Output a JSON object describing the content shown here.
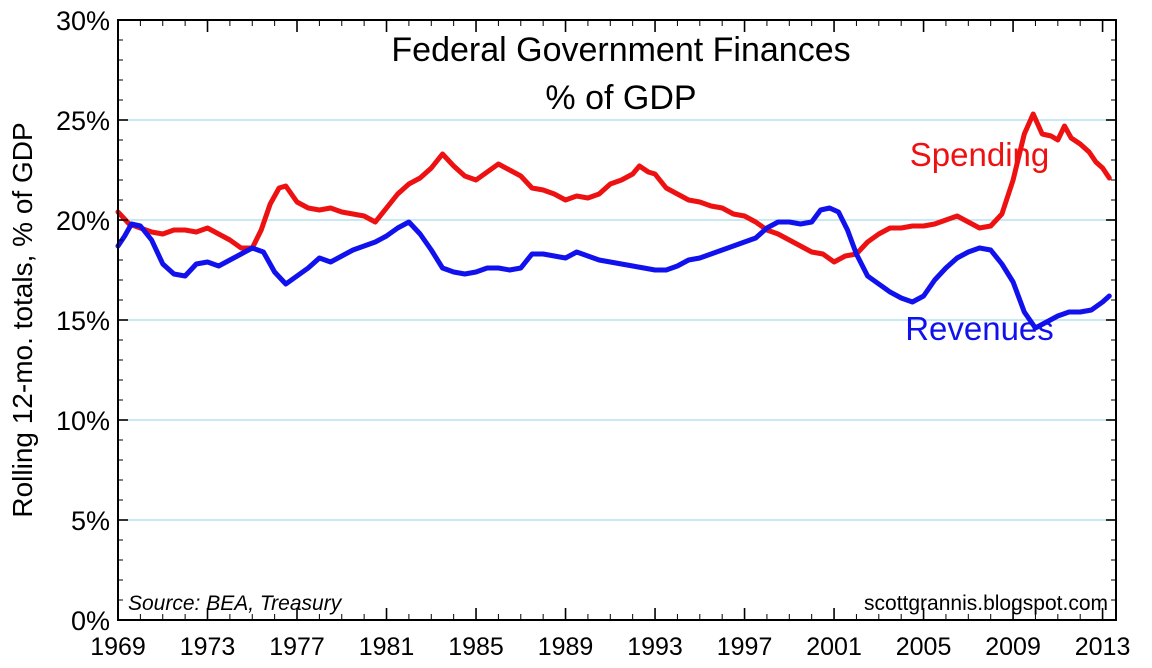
{
  "chart_data": {
    "type": "line",
    "title_line1": "Federal Government Finances",
    "title_line2": "% of GDP",
    "ylabel": "Rolling 12-mo. totals, % of GDP",
    "xlabel": "",
    "source": "Source:  BEA, Treasury",
    "credit": "scottgrannis.blogspot.com",
    "xlim": [
      1969,
      2013.6
    ],
    "ylim": [
      0,
      30
    ],
    "y_ticks": [
      {
        "value": 0,
        "label": "0%"
      },
      {
        "value": 5,
        "label": "5%"
      },
      {
        "value": 10,
        "label": "10%"
      },
      {
        "value": 15,
        "label": "15%"
      },
      {
        "value": 20,
        "label": "20%"
      },
      {
        "value": 25,
        "label": "25%"
      },
      {
        "value": 30,
        "label": "30%"
      }
    ],
    "x_ticks": [
      {
        "value": 1969,
        "label": "1969"
      },
      {
        "value": 1973,
        "label": "1973"
      },
      {
        "value": 1977,
        "label": "1977"
      },
      {
        "value": 1981,
        "label": "1981"
      },
      {
        "value": 1985,
        "label": "1985"
      },
      {
        "value": 1989,
        "label": "1989"
      },
      {
        "value": 1993,
        "label": "1993"
      },
      {
        "value": 1997,
        "label": "1997"
      },
      {
        "value": 2001,
        "label": "2001"
      },
      {
        "value": 2005,
        "label": "2005"
      },
      {
        "value": 2009,
        "label": "2009"
      },
      {
        "value": 2013,
        "label": "2013"
      }
    ],
    "grid": true,
    "series": [
      {
        "name": "Spending",
        "color": "#ee1111",
        "label_at": [
          2007.5,
          22.7
        ],
        "points": [
          [
            1969.0,
            20.4
          ],
          [
            1969.5,
            19.8
          ],
          [
            1970.0,
            19.6
          ],
          [
            1970.5,
            19.4
          ],
          [
            1971.0,
            19.3
          ],
          [
            1971.5,
            19.5
          ],
          [
            1972.0,
            19.5
          ],
          [
            1972.5,
            19.4
          ],
          [
            1973.0,
            19.6
          ],
          [
            1973.5,
            19.3
          ],
          [
            1974.0,
            19.0
          ],
          [
            1974.5,
            18.6
          ],
          [
            1975.0,
            18.6
          ],
          [
            1975.4,
            19.5
          ],
          [
            1975.8,
            20.8
          ],
          [
            1976.2,
            21.6
          ],
          [
            1976.5,
            21.7
          ],
          [
            1977.0,
            20.9
          ],
          [
            1977.5,
            20.6
          ],
          [
            1978.0,
            20.5
          ],
          [
            1978.5,
            20.6
          ],
          [
            1979.0,
            20.4
          ],
          [
            1979.5,
            20.3
          ],
          [
            1980.0,
            20.2
          ],
          [
            1980.5,
            19.9
          ],
          [
            1981.0,
            20.6
          ],
          [
            1981.5,
            21.3
          ],
          [
            1982.0,
            21.8
          ],
          [
            1982.5,
            22.1
          ],
          [
            1983.0,
            22.6
          ],
          [
            1983.5,
            23.3
          ],
          [
            1984.0,
            22.7
          ],
          [
            1984.5,
            22.2
          ],
          [
            1985.0,
            22.0
          ],
          [
            1985.5,
            22.4
          ],
          [
            1986.0,
            22.8
          ],
          [
            1986.5,
            22.5
          ],
          [
            1987.0,
            22.2
          ],
          [
            1987.5,
            21.6
          ],
          [
            1988.0,
            21.5
          ],
          [
            1988.5,
            21.3
          ],
          [
            1989.0,
            21.0
          ],
          [
            1989.5,
            21.2
          ],
          [
            1990.0,
            21.1
          ],
          [
            1990.5,
            21.3
          ],
          [
            1991.0,
            21.8
          ],
          [
            1991.5,
            22.0
          ],
          [
            1992.0,
            22.3
          ],
          [
            1992.3,
            22.7
          ],
          [
            1992.7,
            22.4
          ],
          [
            1993.0,
            22.3
          ],
          [
            1993.5,
            21.6
          ],
          [
            1994.0,
            21.3
          ],
          [
            1994.5,
            21.0
          ],
          [
            1995.0,
            20.9
          ],
          [
            1995.5,
            20.7
          ],
          [
            1996.0,
            20.6
          ],
          [
            1996.5,
            20.3
          ],
          [
            1997.0,
            20.2
          ],
          [
            1997.5,
            19.9
          ],
          [
            1998.0,
            19.5
          ],
          [
            1998.5,
            19.3
          ],
          [
            1999.0,
            19.0
          ],
          [
            1999.5,
            18.7
          ],
          [
            2000.0,
            18.4
          ],
          [
            2000.5,
            18.3
          ],
          [
            2001.0,
            17.9
          ],
          [
            2001.5,
            18.2
          ],
          [
            2002.0,
            18.3
          ],
          [
            2002.5,
            18.9
          ],
          [
            2003.0,
            19.3
          ],
          [
            2003.5,
            19.6
          ],
          [
            2004.0,
            19.6
          ],
          [
            2004.5,
            19.7
          ],
          [
            2005.0,
            19.7
          ],
          [
            2005.5,
            19.8
          ],
          [
            2006.0,
            20.0
          ],
          [
            2006.5,
            20.2
          ],
          [
            2007.0,
            19.9
          ],
          [
            2007.5,
            19.6
          ],
          [
            2008.0,
            19.7
          ],
          [
            2008.5,
            20.3
          ],
          [
            2009.0,
            22.0
          ],
          [
            2009.5,
            24.3
          ],
          [
            2009.9,
            25.3
          ],
          [
            2010.3,
            24.3
          ],
          [
            2010.7,
            24.2
          ],
          [
            2011.0,
            24.0
          ],
          [
            2011.3,
            24.7
          ],
          [
            2011.6,
            24.1
          ],
          [
            2012.0,
            23.8
          ],
          [
            2012.4,
            23.4
          ],
          [
            2012.7,
            22.9
          ],
          [
            2013.0,
            22.6
          ],
          [
            2013.3,
            22.1
          ]
        ]
      },
      {
        "name": "Revenues",
        "color": "#1111ee",
        "label_at": [
          2007.5,
          14.0
        ],
        "points": [
          [
            1969.0,
            18.7
          ],
          [
            1969.3,
            19.2
          ],
          [
            1969.6,
            19.8
          ],
          [
            1970.0,
            19.7
          ],
          [
            1970.5,
            19.0
          ],
          [
            1971.0,
            17.8
          ],
          [
            1971.5,
            17.3
          ],
          [
            1972.0,
            17.2
          ],
          [
            1972.5,
            17.8
          ],
          [
            1973.0,
            17.9
          ],
          [
            1973.5,
            17.7
          ],
          [
            1974.0,
            18.0
          ],
          [
            1974.5,
            18.3
          ],
          [
            1975.0,
            18.6
          ],
          [
            1975.5,
            18.4
          ],
          [
            1976.0,
            17.4
          ],
          [
            1976.5,
            16.8
          ],
          [
            1977.0,
            17.2
          ],
          [
            1977.5,
            17.6
          ],
          [
            1978.0,
            18.1
          ],
          [
            1978.5,
            17.9
          ],
          [
            1979.0,
            18.2
          ],
          [
            1979.5,
            18.5
          ],
          [
            1980.0,
            18.7
          ],
          [
            1980.5,
            18.9
          ],
          [
            1981.0,
            19.2
          ],
          [
            1981.5,
            19.6
          ],
          [
            1982.0,
            19.9
          ],
          [
            1982.5,
            19.3
          ],
          [
            1983.0,
            18.5
          ],
          [
            1983.5,
            17.6
          ],
          [
            1984.0,
            17.4
          ],
          [
            1984.5,
            17.3
          ],
          [
            1985.0,
            17.4
          ],
          [
            1985.5,
            17.6
          ],
          [
            1986.0,
            17.6
          ],
          [
            1986.5,
            17.5
          ],
          [
            1987.0,
            17.6
          ],
          [
            1987.5,
            18.3
          ],
          [
            1988.0,
            18.3
          ],
          [
            1988.5,
            18.2
          ],
          [
            1989.0,
            18.1
          ],
          [
            1989.5,
            18.4
          ],
          [
            1990.0,
            18.2
          ],
          [
            1990.5,
            18.0
          ],
          [
            1991.0,
            17.9
          ],
          [
            1991.5,
            17.8
          ],
          [
            1992.0,
            17.7
          ],
          [
            1992.5,
            17.6
          ],
          [
            1993.0,
            17.5
          ],
          [
            1993.5,
            17.5
          ],
          [
            1994.0,
            17.7
          ],
          [
            1994.5,
            18.0
          ],
          [
            1995.0,
            18.1
          ],
          [
            1995.5,
            18.3
          ],
          [
            1996.0,
            18.5
          ],
          [
            1996.5,
            18.7
          ],
          [
            1997.0,
            18.9
          ],
          [
            1997.5,
            19.1
          ],
          [
            1998.0,
            19.6
          ],
          [
            1998.5,
            19.9
          ],
          [
            1999.0,
            19.9
          ],
          [
            1999.5,
            19.8
          ],
          [
            2000.0,
            19.9
          ],
          [
            2000.4,
            20.5
          ],
          [
            2000.8,
            20.6
          ],
          [
            2001.2,
            20.4
          ],
          [
            2001.6,
            19.5
          ],
          [
            2002.0,
            18.3
          ],
          [
            2002.5,
            17.2
          ],
          [
            2003.0,
            16.8
          ],
          [
            2003.5,
            16.4
          ],
          [
            2004.0,
            16.1
          ],
          [
            2004.5,
            15.9
          ],
          [
            2005.0,
            16.2
          ],
          [
            2005.5,
            17.0
          ],
          [
            2006.0,
            17.6
          ],
          [
            2006.5,
            18.1
          ],
          [
            2007.0,
            18.4
          ],
          [
            2007.5,
            18.6
          ],
          [
            2008.0,
            18.5
          ],
          [
            2008.5,
            17.8
          ],
          [
            2009.0,
            16.9
          ],
          [
            2009.5,
            15.4
          ],
          [
            2010.0,
            14.6
          ],
          [
            2010.5,
            14.9
          ],
          [
            2011.0,
            15.2
          ],
          [
            2011.5,
            15.4
          ],
          [
            2012.0,
            15.4
          ],
          [
            2012.5,
            15.5
          ],
          [
            2013.0,
            15.9
          ],
          [
            2013.3,
            16.2
          ]
        ]
      }
    ]
  }
}
